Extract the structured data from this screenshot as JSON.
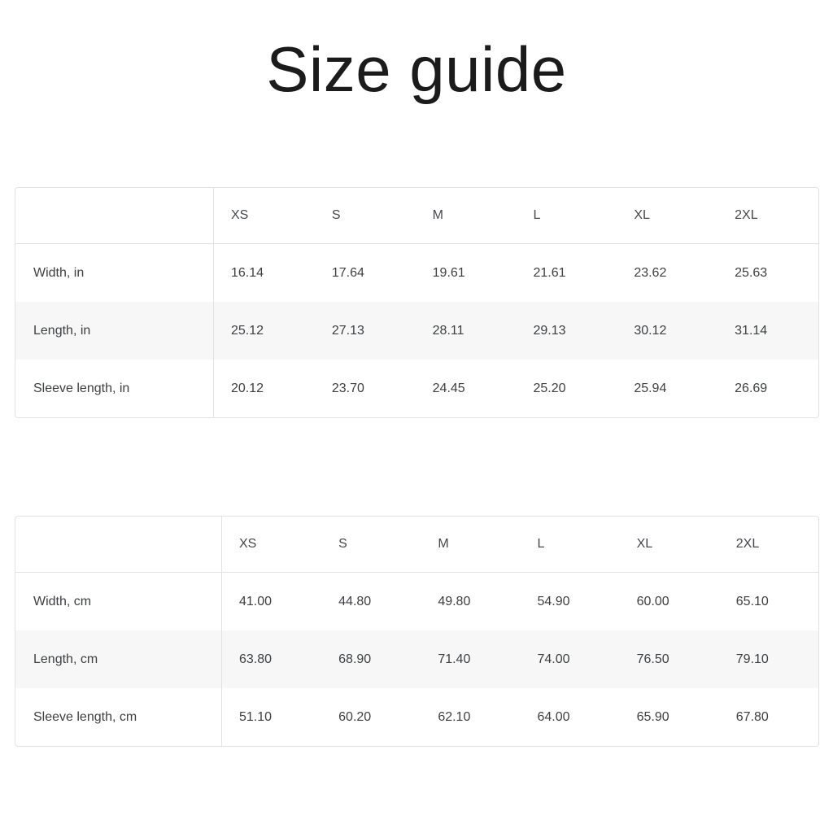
{
  "page": {
    "title": "Size guide"
  },
  "colors": {
    "border": "#e1e2e3",
    "zebra_row_background": "#f7f7f7",
    "table_text": "#3d4043",
    "title_text": "#1b1b1b",
    "page_background": "#ffffff"
  },
  "tables": [
    {
      "unit": "in",
      "columns": [
        "XS",
        "S",
        "M",
        "L",
        "XL",
        "2XL"
      ],
      "rows": [
        {
          "label": "Width, in",
          "values": [
            "16.14",
            "17.64",
            "19.61",
            "21.61",
            "23.62",
            "25.63"
          ]
        },
        {
          "label": "Length, in",
          "values": [
            "25.12",
            "27.13",
            "28.11",
            "29.13",
            "30.12",
            "31.14"
          ]
        },
        {
          "label": "Sleeve length, in",
          "values": [
            "20.12",
            "23.70",
            "24.45",
            "25.20",
            "25.94",
            "26.69"
          ]
        }
      ]
    },
    {
      "unit": "cm",
      "columns": [
        "XS",
        "S",
        "M",
        "L",
        "XL",
        "2XL"
      ],
      "rows": [
        {
          "label": "Width, cm",
          "values": [
            "41.00",
            "44.80",
            "49.80",
            "54.90",
            "60.00",
            "65.10"
          ]
        },
        {
          "label": "Length, cm",
          "values": [
            "63.80",
            "68.90",
            "71.40",
            "74.00",
            "76.50",
            "79.10"
          ]
        },
        {
          "label": "Sleeve length, cm",
          "values": [
            "51.10",
            "60.20",
            "62.10",
            "64.00",
            "65.90",
            "67.80"
          ]
        }
      ]
    }
  ]
}
